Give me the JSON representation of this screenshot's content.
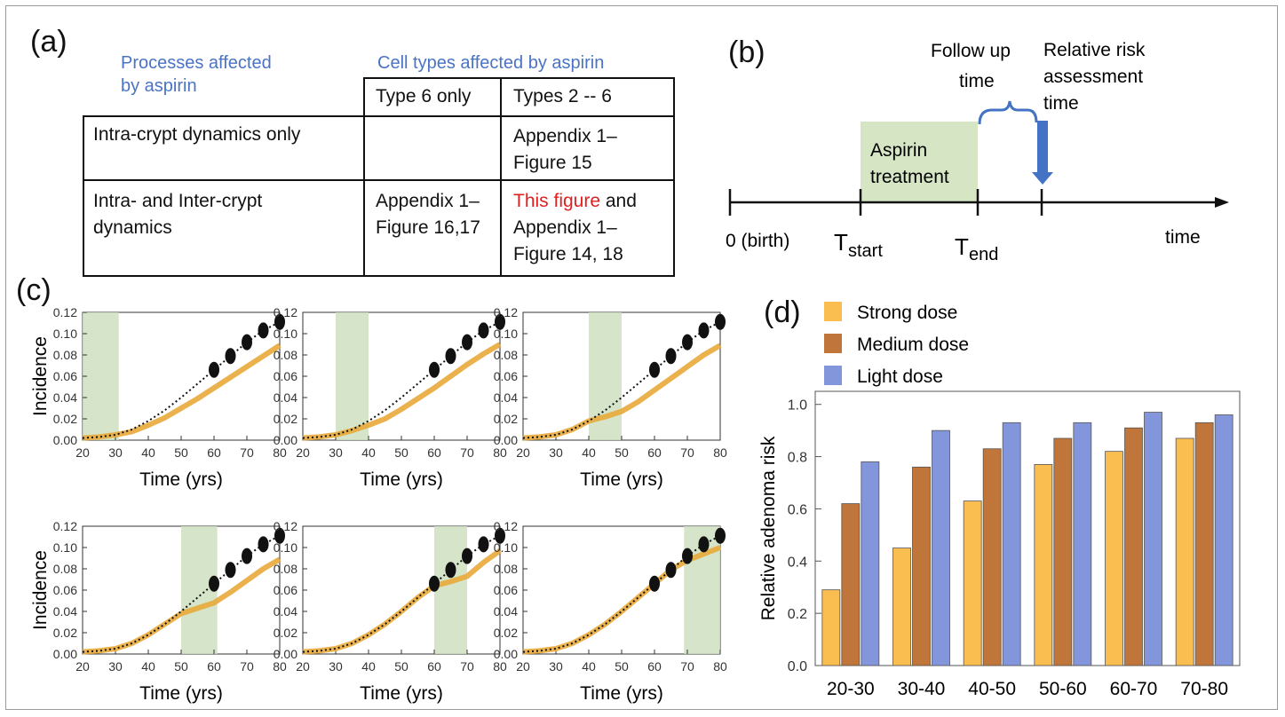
{
  "panels": {
    "a": "(a)",
    "b": "(b)",
    "c": "(c)",
    "d": "(d)"
  },
  "table": {
    "head_processes": [
      "Processes affected",
      "by aspirin"
    ],
    "head_cells": "Cell types affected by aspirin",
    "col1": "Type 6 only",
    "col2": "Types 2 -- 6",
    "row1_label": "Intra-crypt dynamics only",
    "row1_col1": "",
    "row1_col2": [
      "Appendix 1–",
      "Figure 15"
    ],
    "row2_label": [
      "Intra- and Inter-crypt",
      "dynamics"
    ],
    "row2_col1": [
      "Appendix 1–",
      "Figure 16,17"
    ],
    "row2_col2_red": "This figure",
    "row2_col2_rest": " and",
    "row2_col2_more": [
      "Appendix 1–",
      "Figure 14, 18"
    ]
  },
  "timeline": {
    "follow_up": [
      "Follow up",
      "time"
    ],
    "rr_time": [
      "Relative risk",
      "assessment",
      "time"
    ],
    "treatment": [
      "Aspirin",
      "treatment"
    ],
    "birth": "0 (birth)",
    "t_start": "T",
    "t_start_sub": "start",
    "t_end": "T",
    "t_end_sub": "end",
    "time": "time",
    "colors": {
      "box": "#d6e6c4",
      "arrow": "#4472c4"
    }
  },
  "chart_data": [
    {
      "type": "line",
      "panel": "c",
      "xlabel": "Time (yrs)",
      "ylabel": "Incidence",
      "xlim": [
        20,
        80
      ],
      "ylim": [
        0,
        0.12
      ],
      "xticks": [
        "20",
        "30",
        "40",
        "50",
        "60",
        "70",
        "80"
      ],
      "yticks": [
        "0.00",
        "0.02",
        "0.04",
        "0.06",
        "0.08",
        "0.10",
        "0.12"
      ],
      "x": [
        20,
        25,
        30,
        35,
        40,
        45,
        50,
        55,
        60,
        65,
        70,
        75,
        80
      ],
      "untreated": [
        0.002,
        0.003,
        0.005,
        0.01,
        0.018,
        0.028,
        0.04,
        0.053,
        0.066,
        0.079,
        0.092,
        0.103,
        0.111
      ],
      "treated_baseline": [
        0.002,
        0.003,
        0.005,
        0.008,
        0.014,
        0.021,
        0.03,
        0.039,
        0.049,
        0.059,
        0.069,
        0.079,
        0.089
      ],
      "colors": {
        "untreated": "#111111",
        "treated": "#e8a838",
        "window": "#cfe1c0"
      },
      "subplots": [
        {
          "window": [
            20,
            31
          ],
          "treated": [
            0.002,
            0.003,
            0.005,
            0.008,
            0.014,
            0.021,
            0.03,
            0.039,
            0.049,
            0.059,
            0.069,
            0.079,
            0.089
          ]
        },
        {
          "window": [
            30,
            40
          ],
          "treated": [
            0.002,
            0.003,
            0.005,
            0.009,
            0.014,
            0.02,
            0.029,
            0.039,
            0.049,
            0.06,
            0.071,
            0.081,
            0.09
          ]
        },
        {
          "window": [
            40,
            50
          ],
          "treated": [
            0.002,
            0.003,
            0.005,
            0.01,
            0.018,
            0.022,
            0.027,
            0.036,
            0.047,
            0.058,
            0.069,
            0.08,
            0.089
          ]
        },
        {
          "window": [
            50,
            61
          ],
          "treated": [
            0.002,
            0.003,
            0.005,
            0.01,
            0.018,
            0.028,
            0.038,
            0.043,
            0.048,
            0.058,
            0.069,
            0.08,
            0.089
          ]
        },
        {
          "window": [
            60,
            70
          ],
          "treated": [
            0.002,
            0.003,
            0.005,
            0.01,
            0.018,
            0.028,
            0.04,
            0.053,
            0.064,
            0.068,
            0.073,
            0.086,
            0.097
          ]
        },
        {
          "window": [
            69,
            80
          ],
          "treated": [
            0.002,
            0.003,
            0.005,
            0.01,
            0.018,
            0.028,
            0.04,
            0.053,
            0.066,
            0.079,
            0.088,
            0.094,
            0.1
          ]
        }
      ]
    },
    {
      "type": "bar",
      "panel": "d",
      "categories": [
        "20-30",
        "30-40",
        "40-50",
        "50-60",
        "60-70",
        "70-80"
      ],
      "series": [
        {
          "name": "Strong dose",
          "values": [
            0.29,
            0.45,
            0.63,
            0.77,
            0.82,
            0.87
          ],
          "color": "#f9bd50"
        },
        {
          "name": "Medium dose",
          "values": [
            0.62,
            0.76,
            0.83,
            0.87,
            0.91,
            0.93
          ],
          "color": "#c0763a"
        },
        {
          "name": "Light dose",
          "values": [
            0.78,
            0.9,
            0.93,
            0.93,
            0.97,
            0.96
          ],
          "color": "#8496db"
        }
      ],
      "ylabel": "Relative adenoma risk",
      "ylim": [
        0,
        1.05
      ],
      "yticks": [
        "0.0",
        "0.2",
        "0.4",
        "0.6",
        "0.8",
        "1.0"
      ],
      "legend_position": "top-left"
    }
  ]
}
